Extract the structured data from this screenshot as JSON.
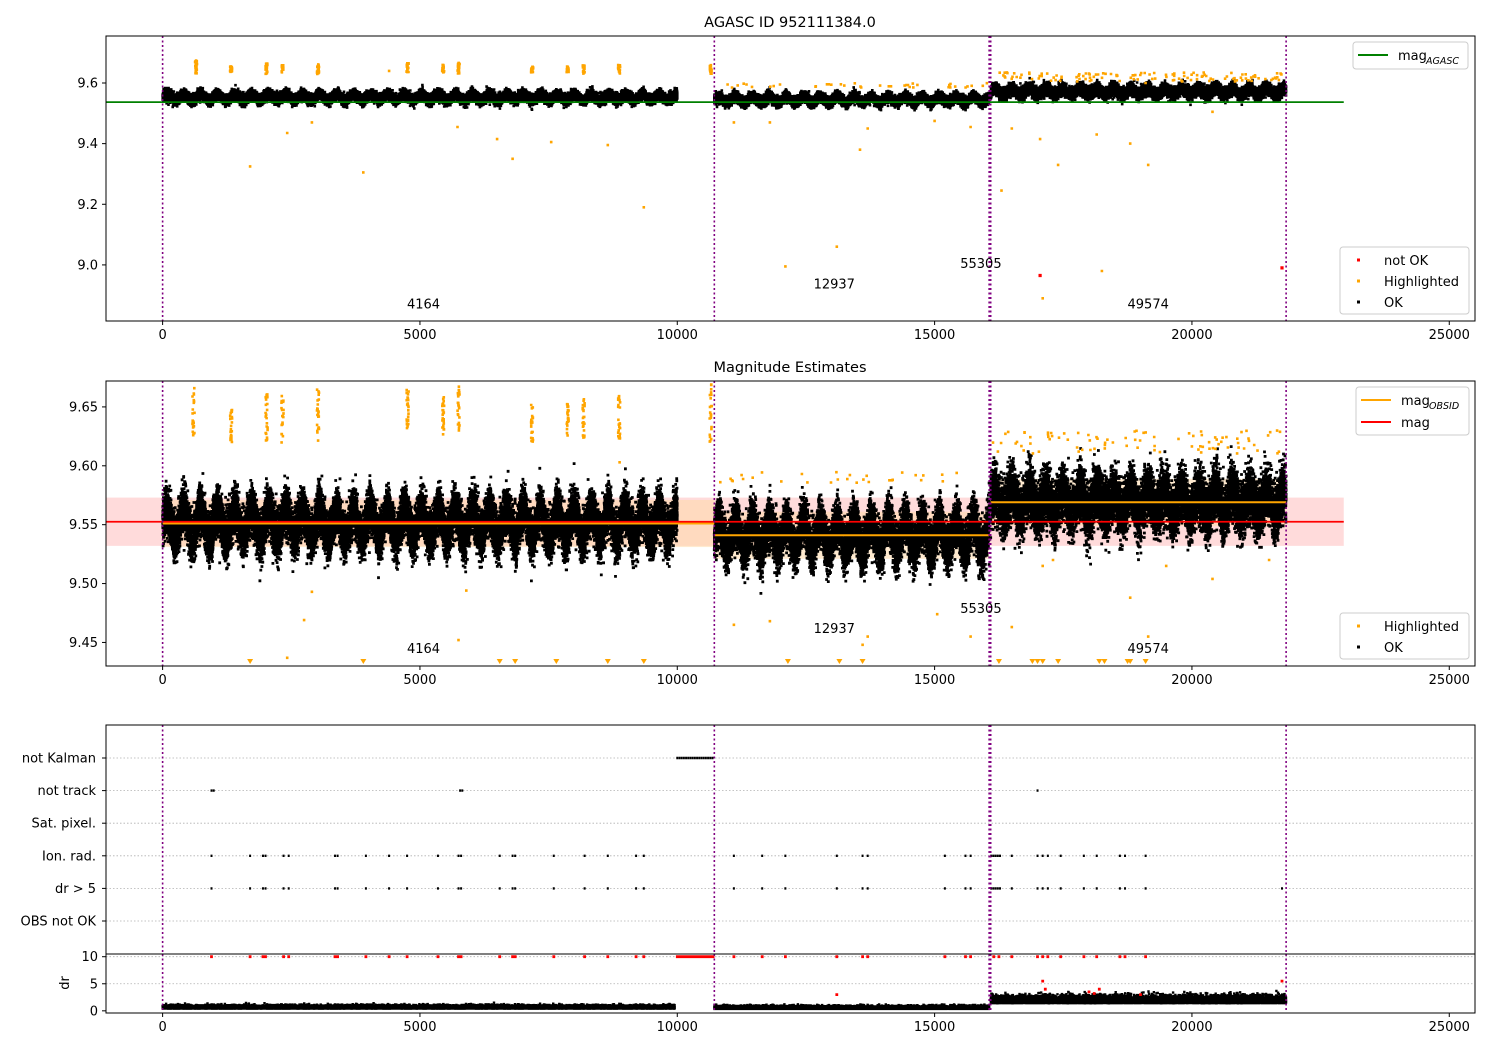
{
  "chart_data": [
    {
      "type": "scatter",
      "title": "AGASC ID 952111384.0",
      "xlim": [
        -1100,
        25500
      ],
      "ylim": [
        8.815,
        9.755
      ],
      "xticks": [
        0,
        5000,
        10000,
        15000,
        20000,
        25000
      ],
      "yticks": [
        9.0,
        9.2,
        9.4,
        9.6
      ],
      "ytick_labels": [
        "9.0",
        "9.2",
        "9.4",
        "9.6"
      ],
      "reference_line": {
        "y": 9.537,
        "x": [
          -1100,
          22950
        ],
        "color": "#008000"
      },
      "obsid_boundaries": [
        0,
        10720,
        16060,
        16090,
        21830
      ],
      "obsid_labels": [
        {
          "x": 5070,
          "y": 8.857,
          "text": "4164"
        },
        {
          "x": 13050,
          "y": 8.923,
          "text": "12937"
        },
        {
          "x": 15900,
          "y": 8.99,
          "text": "55305"
        },
        {
          "x": 19150,
          "y": 8.857,
          "text": "49574"
        }
      ],
      "legend_upper": [
        {
          "label": "mag",
          "sub": "AGASC",
          "color": "#008000",
          "kind": "line"
        }
      ],
      "legend_lower": [
        {
          "label": "not OK",
          "color": "#ff0000",
          "kind": "dot"
        },
        {
          "label": "Highlighted",
          "color": "#ffa500",
          "kind": "dot"
        },
        {
          "label": "OK",
          "color": "#000000",
          "kind": "dot"
        }
      ],
      "series": [
        {
          "name": "OK",
          "segments": [
            {
              "x": [
                0,
                10000
              ],
              "center": 9.553,
              "spread": 0.025,
              "seasonal_amp": 0.012
            },
            {
              "x": [
                10720,
                16060
              ],
              "center": 9.545,
              "spread": 0.025,
              "seasonal_amp": 0.012
            },
            {
              "x": [
                16090,
                21830
              ],
              "center": 9.572,
              "spread": 0.03,
              "seasonal_amp": 0.012
            }
          ]
        },
        {
          "name": "Highlighted",
          "points": [
            [
              1700,
              9.325
            ],
            [
              2420,
              9.435
            ],
            [
              2900,
              9.47
            ],
            [
              3900,
              9.305
            ],
            [
              4400,
              9.64
            ],
            [
              5730,
              9.455
            ],
            [
              6500,
              9.415
            ],
            [
              6800,
              9.35
            ],
            [
              7550,
              9.405
            ],
            [
              8650,
              9.395
            ],
            [
              9350,
              9.19
            ],
            [
              11100,
              9.47
            ],
            [
              11800,
              9.47
            ],
            [
              12100,
              8.995
            ],
            [
              13100,
              9.06
            ],
            [
              13550,
              9.38
            ],
            [
              13700,
              9.45
            ],
            [
              15000,
              9.475
            ],
            [
              15700,
              9.455
            ],
            [
              16300,
              9.245
            ],
            [
              16500,
              9.45
            ],
            [
              17100,
              8.89
            ],
            [
              17050,
              9.415
            ],
            [
              17400,
              9.33
            ],
            [
              18150,
              9.43
            ],
            [
              18250,
              8.98
            ],
            [
              18800,
              9.4
            ],
            [
              19150,
              9.33
            ],
            [
              19100,
              9.6
            ],
            [
              20400,
              9.505
            ]
          ]
        },
        {
          "name": "not OK",
          "points": [
            [
              17050,
              8.965
            ],
            [
              21750,
              8.99
            ]
          ]
        }
      ],
      "highlight_clusters": [
        {
          "x": 650,
          "lo": 9.63,
          "hi": 9.675
        },
        {
          "x": 1330,
          "lo": 9.635,
          "hi": 9.655
        },
        {
          "x": 2020,
          "lo": 9.63,
          "hi": 9.665
        },
        {
          "x": 2330,
          "lo": 9.635,
          "hi": 9.66
        },
        {
          "x": 3020,
          "lo": 9.63,
          "hi": 9.665
        },
        {
          "x": 4760,
          "lo": 9.635,
          "hi": 9.665
        },
        {
          "x": 5450,
          "lo": 9.635,
          "hi": 9.66
        },
        {
          "x": 5750,
          "lo": 9.63,
          "hi": 9.67
        },
        {
          "x": 7180,
          "lo": 9.635,
          "hi": 9.655
        },
        {
          "x": 7870,
          "lo": 9.635,
          "hi": 9.655
        },
        {
          "x": 8180,
          "lo": 9.63,
          "hi": 9.66
        },
        {
          "x": 8870,
          "lo": 9.63,
          "hi": 9.66
        },
        {
          "x": 10650,
          "lo": 9.63,
          "hi": 9.665
        }
      ]
    },
    {
      "type": "scatter",
      "title": "Magnitude Estimates",
      "xlim": [
        -1100,
        25500
      ],
      "ylim": [
        9.43,
        9.672
      ],
      "xticks": [
        0,
        5000,
        10000,
        15000,
        20000,
        25000
      ],
      "yticks": [
        9.45,
        9.5,
        9.55,
        9.6,
        9.65
      ],
      "ytick_labels": [
        "9.45",
        "9.50",
        "9.55",
        "9.60",
        "9.65"
      ],
      "mag_line": {
        "y": 9.5525,
        "x": [
          -1100,
          22950
        ],
        "color": "#ff0000"
      },
      "mag_band": {
        "y": [
          9.532,
          9.573
        ],
        "x": [
          -1100,
          22950
        ],
        "color": "#ffcccc"
      },
      "obsid_mag_segments": [
        {
          "x": [
            0,
            10720
          ],
          "y": 9.551
        },
        {
          "x": [
            10720,
            16060
          ],
          "y": 9.541
        },
        {
          "x": [
            16090,
            21830
          ],
          "y": 9.569
        }
      ],
      "obsid_band_segments": [
        {
          "x": [
            0,
            10720
          ],
          "y": [
            9.531,
            9.571
          ]
        },
        {
          "x": [
            10720,
            16060
          ],
          "y": [
            9.521,
            9.561
          ]
        },
        {
          "x": [
            16090,
            21830
          ],
          "y": [
            9.549,
            9.589
          ]
        }
      ],
      "obsid_boundaries": [
        0,
        10720,
        16060,
        16090,
        21830
      ],
      "obsid_labels": [
        {
          "x": 5070,
          "y": 9.441,
          "text": "4164"
        },
        {
          "x": 13050,
          "y": 9.458,
          "text": "12937"
        },
        {
          "x": 15900,
          "y": 9.475,
          "text": "55305"
        },
        {
          "x": 19150,
          "y": 9.441,
          "text": "49574"
        }
      ],
      "legend_upper": [
        {
          "label": "mag",
          "sub": "OBSID",
          "color": "#ffa500",
          "kind": "line"
        },
        {
          "label": "mag",
          "sub": "",
          "color": "#ff0000",
          "kind": "line"
        }
      ],
      "legend_lower": [
        {
          "label": "Highlighted",
          "color": "#ffa500",
          "kind": "dot"
        },
        {
          "label": "OK",
          "color": "#000000",
          "kind": "dot"
        }
      ],
      "series": [
        {
          "name": "OK",
          "segments": [
            {
              "x": [
                0,
                10000
              ],
              "center": 9.551,
              "spread": 0.03,
              "seasonal_amp": 0.015
            },
            {
              "x": [
                10720,
                16060
              ],
              "center": 9.541,
              "spread": 0.03,
              "seasonal_amp": 0.015
            },
            {
              "x": [
                16090,
                21830
              ],
              "center": 9.569,
              "spread": 0.035,
              "seasonal_amp": 0.012
            }
          ]
        },
        {
          "name": "Highlighted",
          "points": [
            [
              2900,
              9.493
            ],
            [
              2750,
              9.469
            ],
            [
              2420,
              9.437
            ],
            [
              5750,
              9.452
            ],
            [
              5900,
              9.494
            ],
            [
              8880,
              9.603
            ],
            [
              11100,
              9.465
            ],
            [
              11800,
              9.468
            ],
            [
              13600,
              9.448
            ],
            [
              13700,
              9.455
            ],
            [
              15050,
              9.474
            ],
            [
              15700,
              9.455
            ],
            [
              16500,
              9.463
            ],
            [
              17300,
              9.52
            ],
            [
              17100,
              9.515
            ],
            [
              18800,
              9.488
            ],
            [
              19150,
              9.455
            ],
            [
              19500,
              9.515
            ],
            [
              20400,
              9.504
            ],
            [
              21500,
              9.52
            ]
          ]
        }
      ],
      "highlight_clusters": [
        {
          "x": 600,
          "lo": 9.625,
          "hi": 9.672
        },
        {
          "x": 1330,
          "lo": 9.62,
          "hi": 9.65
        },
        {
          "x": 2020,
          "lo": 9.62,
          "hi": 9.665
        },
        {
          "x": 2330,
          "lo": 9.615,
          "hi": 9.66
        },
        {
          "x": 3020,
          "lo": 9.62,
          "hi": 9.665
        },
        {
          "x": 4760,
          "lo": 9.63,
          "hi": 9.665
        },
        {
          "x": 5450,
          "lo": 9.625,
          "hi": 9.66
        },
        {
          "x": 5750,
          "lo": 9.63,
          "hi": 9.67
        },
        {
          "x": 7180,
          "lo": 9.62,
          "hi": 9.652
        },
        {
          "x": 7870,
          "lo": 9.625,
          "hi": 9.655
        },
        {
          "x": 8180,
          "lo": 9.62,
          "hi": 9.66
        },
        {
          "x": 8870,
          "lo": 9.622,
          "hi": 9.66
        },
        {
          "x": 10650,
          "lo": 9.62,
          "hi": 9.67
        }
      ],
      "below_range_markers": [
        1700,
        3900,
        6550,
        6850,
        7650,
        8650,
        9350,
        12150,
        13150,
        13600,
        16250,
        16900,
        17000,
        17100,
        17400,
        18200,
        18300,
        18750,
        18800,
        19100
      ]
    },
    {
      "type": "scatter",
      "title": "",
      "xlim": [
        -1100,
        25500
      ],
      "flag_rows": [
        "not Kalman",
        "not track",
        "Sat. pixel.",
        "Ion. rad.",
        "dr > 5",
        "OBS not OK"
      ],
      "flag_events": {
        "not Kalman": [
          [
            10000,
            10700
          ]
        ],
        "not track": [
          [
            950,
            1000
          ],
          [
            5780,
            5830
          ],
          [
            17000,
            17010
          ]
        ],
        "Sat. pixel.": [],
        "Ion. rad.": [
          [
            950
          ],
          [
            1700
          ],
          [
            1950
          ],
          [
            2000
          ],
          [
            2350
          ],
          [
            2450
          ],
          [
            3350
          ],
          [
            3400
          ],
          [
            3950
          ],
          [
            4400
          ],
          [
            4750
          ],
          [
            5350
          ],
          [
            5750
          ],
          [
            5800
          ],
          [
            6550
          ],
          [
            6800
          ],
          [
            6850
          ],
          [
            7600
          ],
          [
            8200
          ],
          [
            8650
          ],
          [
            9200
          ],
          [
            9350
          ],
          [
            11100
          ],
          [
            11650
          ],
          [
            12100
          ],
          [
            13100
          ],
          [
            13600
          ],
          [
            13700
          ],
          [
            15200
          ],
          [
            15600
          ],
          [
            15700
          ],
          [
            16100,
            16300
          ],
          [
            16500
          ],
          [
            17000
          ],
          [
            17100
          ],
          [
            17200
          ],
          [
            17450
          ],
          [
            17900
          ],
          [
            18150
          ],
          [
            18600
          ],
          [
            18700
          ],
          [
            19100
          ]
        ],
        "dr > 5": [
          [
            950
          ],
          [
            1700
          ],
          [
            1950
          ],
          [
            2000
          ],
          [
            2350
          ],
          [
            2450
          ],
          [
            3350
          ],
          [
            3400
          ],
          [
            3950
          ],
          [
            4400
          ],
          [
            4750
          ],
          [
            5350
          ],
          [
            5750
          ],
          [
            5800
          ],
          [
            6550
          ],
          [
            6800
          ],
          [
            6850
          ],
          [
            7600
          ],
          [
            8200
          ],
          [
            8650
          ],
          [
            9200
          ],
          [
            9350
          ],
          [
            11100
          ],
          [
            11650
          ],
          [
            12100
          ],
          [
            13100
          ],
          [
            13600
          ],
          [
            13700
          ],
          [
            15200
          ],
          [
            15600
          ],
          [
            15700
          ],
          [
            16100,
            16300
          ],
          [
            16500
          ],
          [
            17000
          ],
          [
            17100
          ],
          [
            17200
          ],
          [
            17450
          ],
          [
            17900
          ],
          [
            18150
          ],
          [
            18600
          ],
          [
            18700
          ],
          [
            19100
          ],
          [
            21750
          ]
        ],
        "OBS not OK": []
      },
      "obsid_boundaries": [
        0,
        10720,
        16060,
        16090,
        21830
      ]
    },
    {
      "type": "scatter",
      "title": "",
      "ylabel": "dr",
      "xlim": [
        -1100,
        25500
      ],
      "ylim": [
        -0.4,
        10.5
      ],
      "xticks": [
        0,
        5000,
        10000,
        15000,
        20000,
        25000
      ],
      "yticks": [
        0,
        5,
        10
      ],
      "ytick_labels": [
        "0",
        "5",
        "10"
      ],
      "series": [
        {
          "name": "OK",
          "segments": [
            {
              "x": [
                0,
                9950
              ],
              "center": 0.4,
              "spread": 0.45
            },
            {
              "x": [
                10720,
                16060
              ],
              "center": 0.35,
              "spread": 0.4
            },
            {
              "x": [
                16090,
                21830
              ],
              "center": 1.4,
              "spread": 1.0
            }
          ]
        },
        {
          "name": "not OK",
          "clipped_at": 10,
          "x": [
            950,
            1700,
            1950,
            2000,
            2350,
            2450,
            3350,
            3400,
            3950,
            4400,
            4750,
            5350,
            5750,
            5800,
            6550,
            6800,
            6850,
            7600,
            8200,
            8650,
            9200,
            9350,
            11100,
            11650,
            12100,
            13100,
            13600,
            13700,
            15200,
            15600,
            15700,
            16150,
            16250,
            16500,
            17000,
            17100,
            17200,
            17450,
            17900,
            18150,
            18600,
            18700,
            19100
          ]
        },
        {
          "name": "not OK (low)",
          "points": [
            [
              13100,
              3.0
            ],
            [
              17100,
              5.5
            ],
            [
              17150,
              4.0
            ],
            [
              18000,
              3.5
            ],
            [
              18100,
              3.2
            ],
            [
              18200,
              4.0
            ],
            [
              19000,
              3.0
            ],
            [
              21750,
              5.5
            ]
          ]
        }
      ],
      "not_kalman_clip": [
        10000,
        10700
      ],
      "obsid_boundaries": [
        0,
        10720,
        16060,
        16090,
        21830
      ]
    }
  ]
}
